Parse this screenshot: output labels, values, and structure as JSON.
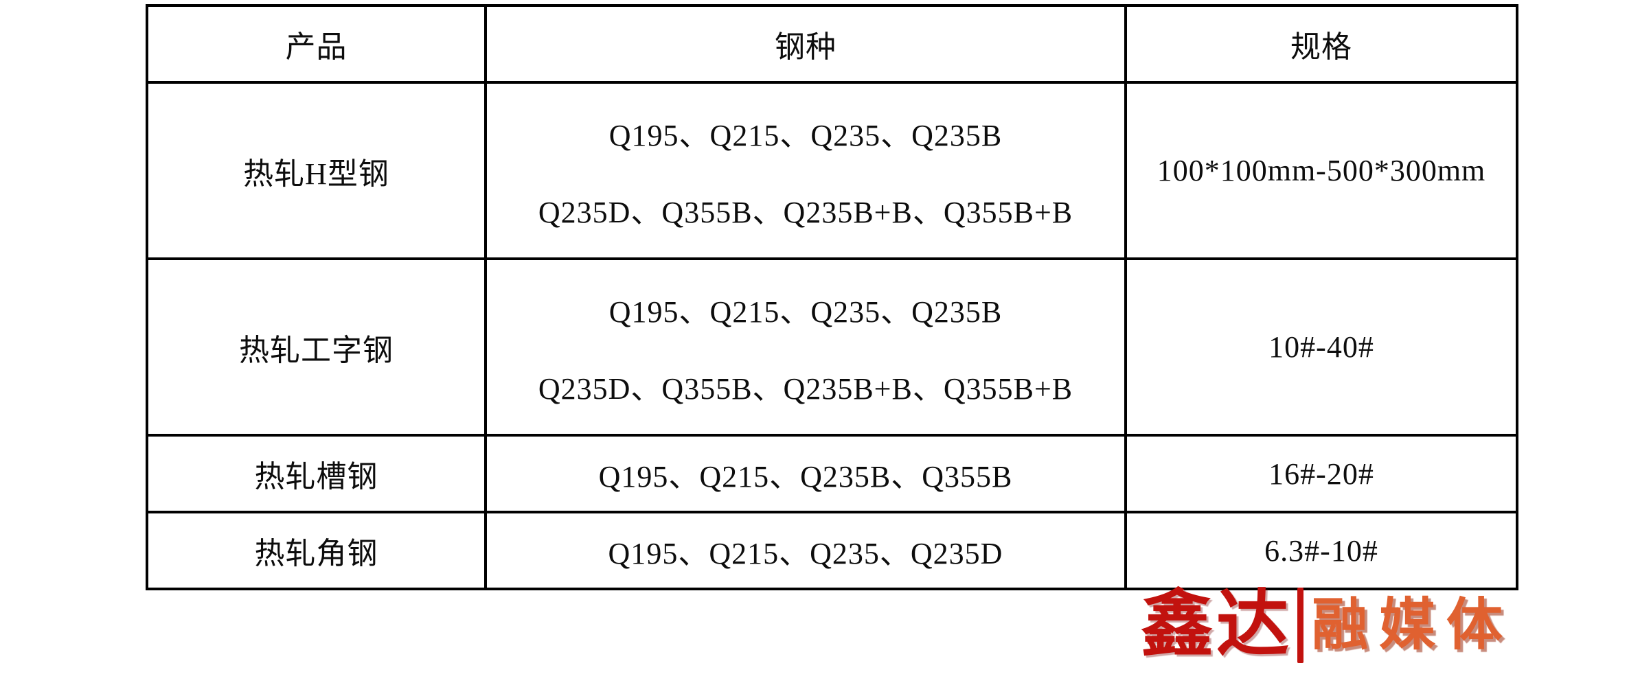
{
  "table": {
    "headers": [
      "产品",
      "钢种",
      "规格"
    ],
    "rows": [
      {
        "product": "热轧H型钢",
        "steel_line1": "Q195、Q215、Q235、Q235B",
        "steel_line2": "Q235D、Q355B、Q235B+B、Q355B+B",
        "spec": "100*100mm-500*300mm"
      },
      {
        "product": "热轧工字钢",
        "steel_line1": "Q195、Q215、Q235、Q235B",
        "steel_line2": "Q235D、Q355B、Q235B+B、Q355B+B",
        "spec": "10#-40#"
      },
      {
        "product": "热轧槽钢",
        "steel_line1": "Q195、Q215、Q235B、Q355B",
        "spec": "16#-20#"
      },
      {
        "product": "热轧角钢",
        "steel_line1": "Q195、Q215、Q235、Q235D",
        "spec": "6.3#-10#"
      }
    ]
  },
  "logo": {
    "brand": "鑫达",
    "suffix": "融媒体",
    "brand_color": "#c2120e",
    "suffix_color": "#e06130",
    "bar_color": "#c2120e"
  }
}
